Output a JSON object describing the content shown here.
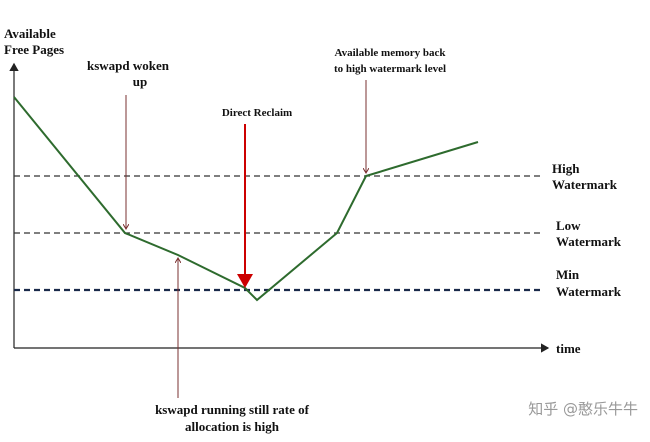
{
  "axes": {
    "y_label": [
      "Available",
      "Free Pages"
    ],
    "x_label": "time"
  },
  "levels": [
    {
      "label": [
        "High",
        "Watermark"
      ]
    },
    {
      "label": [
        "Low",
        "Watermark"
      ]
    },
    {
      "label": [
        "Min",
        "Watermark"
      ]
    }
  ],
  "annotations": [
    {
      "text": [
        "kswapd woken",
        "up"
      ]
    },
    {
      "text": [
        "Direct Reclaim"
      ]
    },
    {
      "text": [
        "Available memory back",
        "to high watermark level"
      ]
    },
    {
      "text": [
        "kswapd running still rate of",
        "allocation is high"
      ]
    }
  ],
  "watermark": "知乎 @憨乐牛牛"
}
